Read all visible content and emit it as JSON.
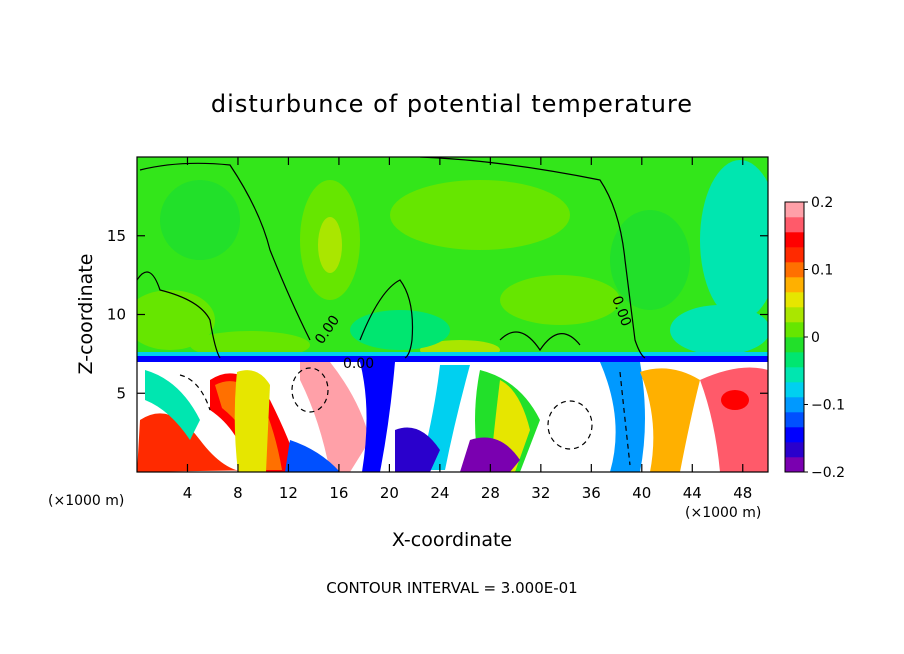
{
  "chart_data": {
    "type": "heatmap",
    "title": "disturbunce of potential temperature",
    "xlabel": "X-coordinate",
    "ylabel": "Z-coordinate",
    "x_unit_left": "(×1000 m)",
    "x_unit_right": "(×1000 m)",
    "xlim": [
      0,
      50
    ],
    "ylim": [
      0,
      20
    ],
    "x_ticks": [
      4,
      8,
      12,
      16,
      20,
      24,
      28,
      32,
      36,
      40,
      44,
      48
    ],
    "y_ticks": [
      5,
      10,
      15
    ],
    "colorbar": {
      "range": [
        -0.2,
        0.2
      ],
      "ticks": [
        {
          "value": 0.2,
          "label": "0.2"
        },
        {
          "value": 0.1,
          "label": "0.1"
        },
        {
          "value": 0,
          "label": "0"
        },
        {
          "value": -0.1,
          "label": "−0.1"
        },
        {
          "value": -0.2,
          "label": "−0.2"
        }
      ],
      "colors": [
        "#7a00b0",
        "#2a00cc",
        "#0000ff",
        "#0050ff",
        "#0099ff",
        "#00d0f0",
        "#00e6b0",
        "#00e670",
        "#22e02a",
        "#66e600",
        "#aae600",
        "#e6e600",
        "#ffb000",
        "#ff7000",
        "#ff2a00",
        "#ff0000",
        "#ff5a6a",
        "#ffa0a8"
      ]
    },
    "contour_labels": [
      "0.00",
      "0.00",
      "0.00"
    ],
    "footer": "CONTOUR INTERVAL = 3.000E-01"
  }
}
